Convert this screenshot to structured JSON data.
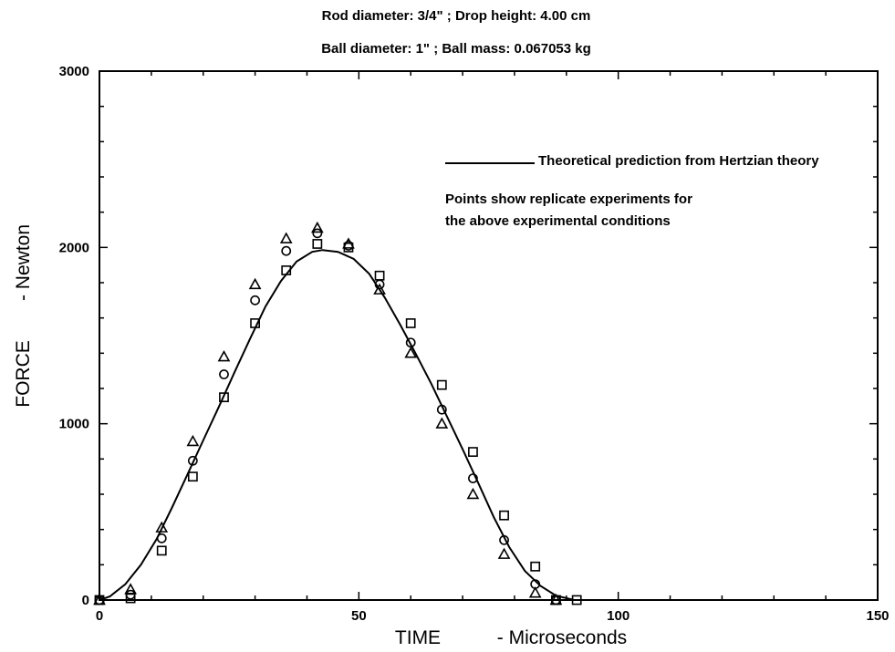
{
  "chart_data": {
    "type": "scatter",
    "title_lines": [
      "Rod diameter: 3/4\" ; Drop height: 4.00 cm",
      "Ball diameter:  1\" ; Ball mass: 0.067053 kg"
    ],
    "xlabel_left": "TIME",
    "xlabel_right": "- Microseconds",
    "ylabel_left": "FORCE",
    "ylabel_right": "- Newton",
    "xlim": [
      0,
      150
    ],
    "ylim": [
      0,
      3000
    ],
    "x_ticks": [
      0,
      50,
      100,
      150
    ],
    "y_ticks": [
      0,
      1000,
      2000,
      3000
    ],
    "legend_line_label": "Theoretical prediction from Hertzian theory",
    "annotation_lines": [
      "Points show replicate experiments for",
      "the above  experimental conditions"
    ],
    "theory_curve": {
      "x": [
        0,
        2,
        5,
        8,
        11,
        14,
        17,
        20,
        23,
        26,
        29,
        32,
        35,
        38,
        41,
        43,
        46,
        49,
        52,
        55,
        58,
        61,
        64,
        67,
        70,
        73,
        76,
        79,
        82,
        85,
        88,
        91.5
      ],
      "y": [
        0,
        20,
        90,
        200,
        345,
        525,
        715,
        905,
        1095,
        1290,
        1480,
        1665,
        1810,
        1920,
        1975,
        1985,
        1975,
        1935,
        1850,
        1715,
        1560,
        1395,
        1225,
        1040,
        855,
        665,
        470,
        300,
        165,
        80,
        25,
        0
      ]
    },
    "series": [
      {
        "marker": "circle",
        "x": [
          0,
          6,
          12,
          18,
          24,
          30,
          36,
          42,
          48,
          54,
          60,
          66,
          72,
          78,
          84,
          88
        ],
        "y": [
          0,
          30,
          350,
          790,
          1280,
          1700,
          1980,
          2080,
          2010,
          1790,
          1460,
          1080,
          690,
          340,
          90,
          0
        ]
      },
      {
        "marker": "triangle",
        "x": [
          0,
          6,
          12,
          18,
          24,
          30,
          36,
          42,
          48,
          54,
          60,
          66,
          72,
          78,
          84,
          88
        ],
        "y": [
          0,
          60,
          410,
          900,
          1380,
          1790,
          2050,
          2110,
          2020,
          1760,
          1400,
          1000,
          600,
          260,
          40,
          0
        ]
      },
      {
        "marker": "square",
        "x": [
          0,
          6,
          12,
          18,
          24,
          30,
          36,
          42,
          48,
          54,
          60,
          66,
          72,
          78,
          84,
          88,
          92
        ],
        "y": [
          0,
          10,
          280,
          700,
          1150,
          1570,
          1870,
          2020,
          2000,
          1840,
          1570,
          1220,
          840,
          480,
          190,
          0,
          0
        ]
      }
    ]
  }
}
